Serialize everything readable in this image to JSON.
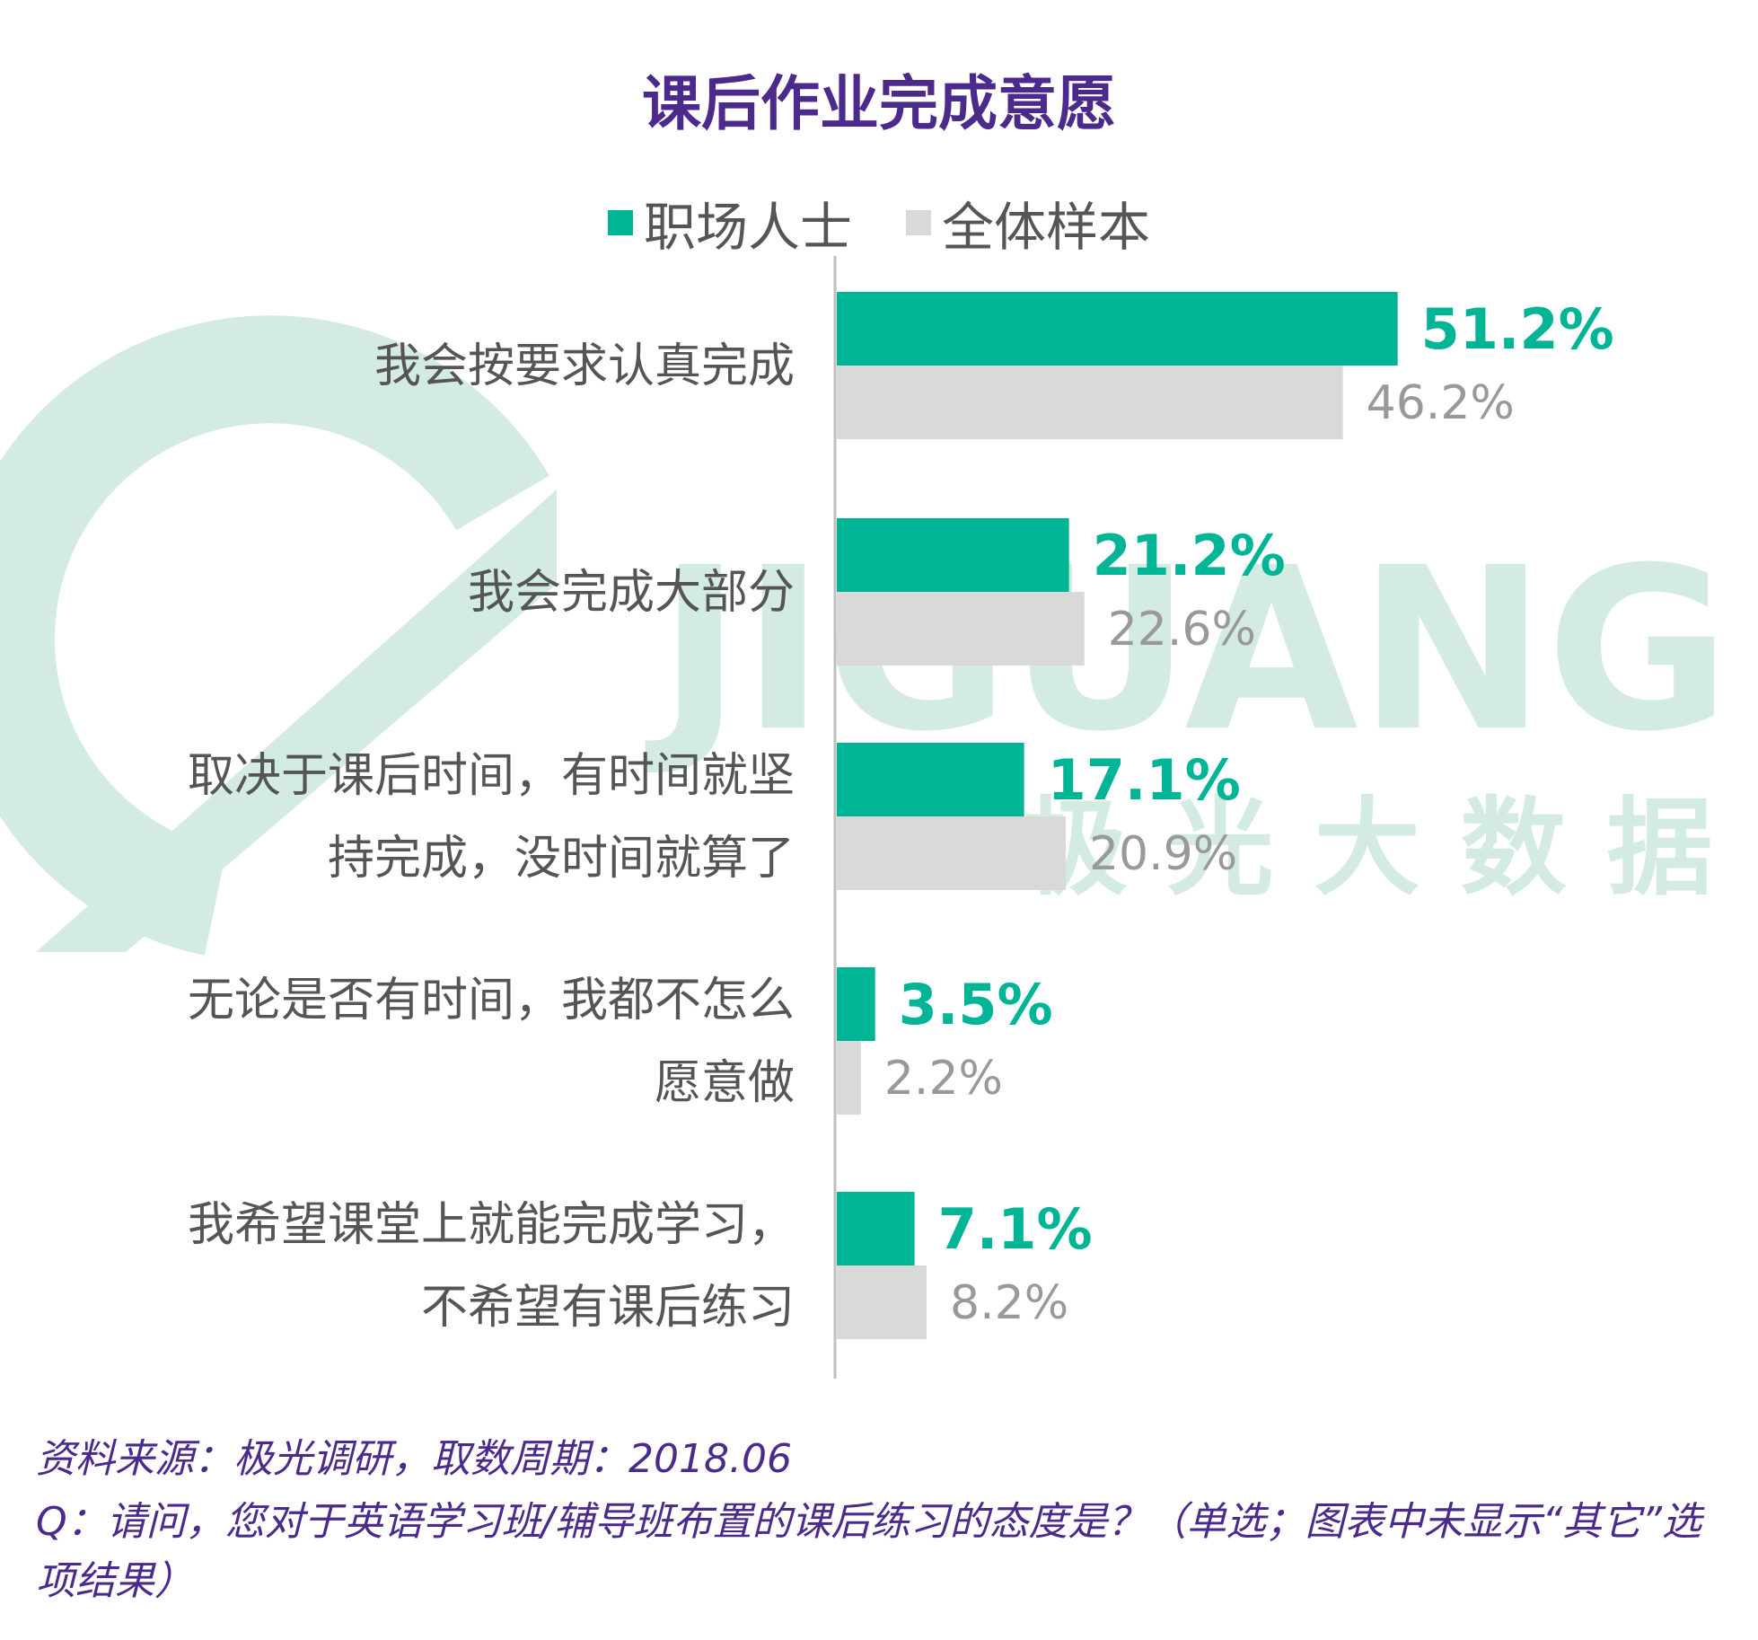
{
  "watermark": {
    "text": "JIGUANG",
    "subtitle": "极光大数据",
    "color": "#d3ebe0"
  },
  "colors": {
    "title": "#4b2a8c",
    "series1": "#00b496",
    "series2": "#d9d9d9",
    "series2_label": "#999999",
    "axis": "#bfbfbf",
    "category_text": "#555555"
  },
  "chart_data": {
    "type": "bar",
    "orientation": "horizontal",
    "title": "课后作业完成意愿",
    "legend_position": "top",
    "xlim": [
      0,
      60
    ],
    "categories": [
      [
        "我会按要求认真完成"
      ],
      [
        "我会完成大部分"
      ],
      [
        "取决于课后时间，有时间就坚",
        "持完成，没时间就算了"
      ],
      [
        "无论是否有时间，我都不怎么",
        "愿意做"
      ],
      [
        "我希望课堂上就能完成学习，",
        "不希望有课后练习"
      ]
    ],
    "series": [
      {
        "name": "职场人士",
        "values": [
          51.2,
          21.2,
          17.1,
          3.5,
          7.1
        ],
        "labels": [
          "51.2%",
          "21.2%",
          "17.1%",
          "3.5%",
          "7.1%"
        ]
      },
      {
        "name": "全体样本",
        "values": [
          46.2,
          22.6,
          20.9,
          2.2,
          8.2
        ],
        "labels": [
          "46.2%",
          "22.6%",
          "20.9%",
          "2.2%",
          "8.2%"
        ]
      }
    ]
  },
  "notes": {
    "source": "资料来源：极光调研，取数周期：2018.06",
    "question": "Q：请问，您对于英语学习班/辅导班布置的课后练习的态度是？（单选；图表中未显示“其它”选项结果）"
  }
}
